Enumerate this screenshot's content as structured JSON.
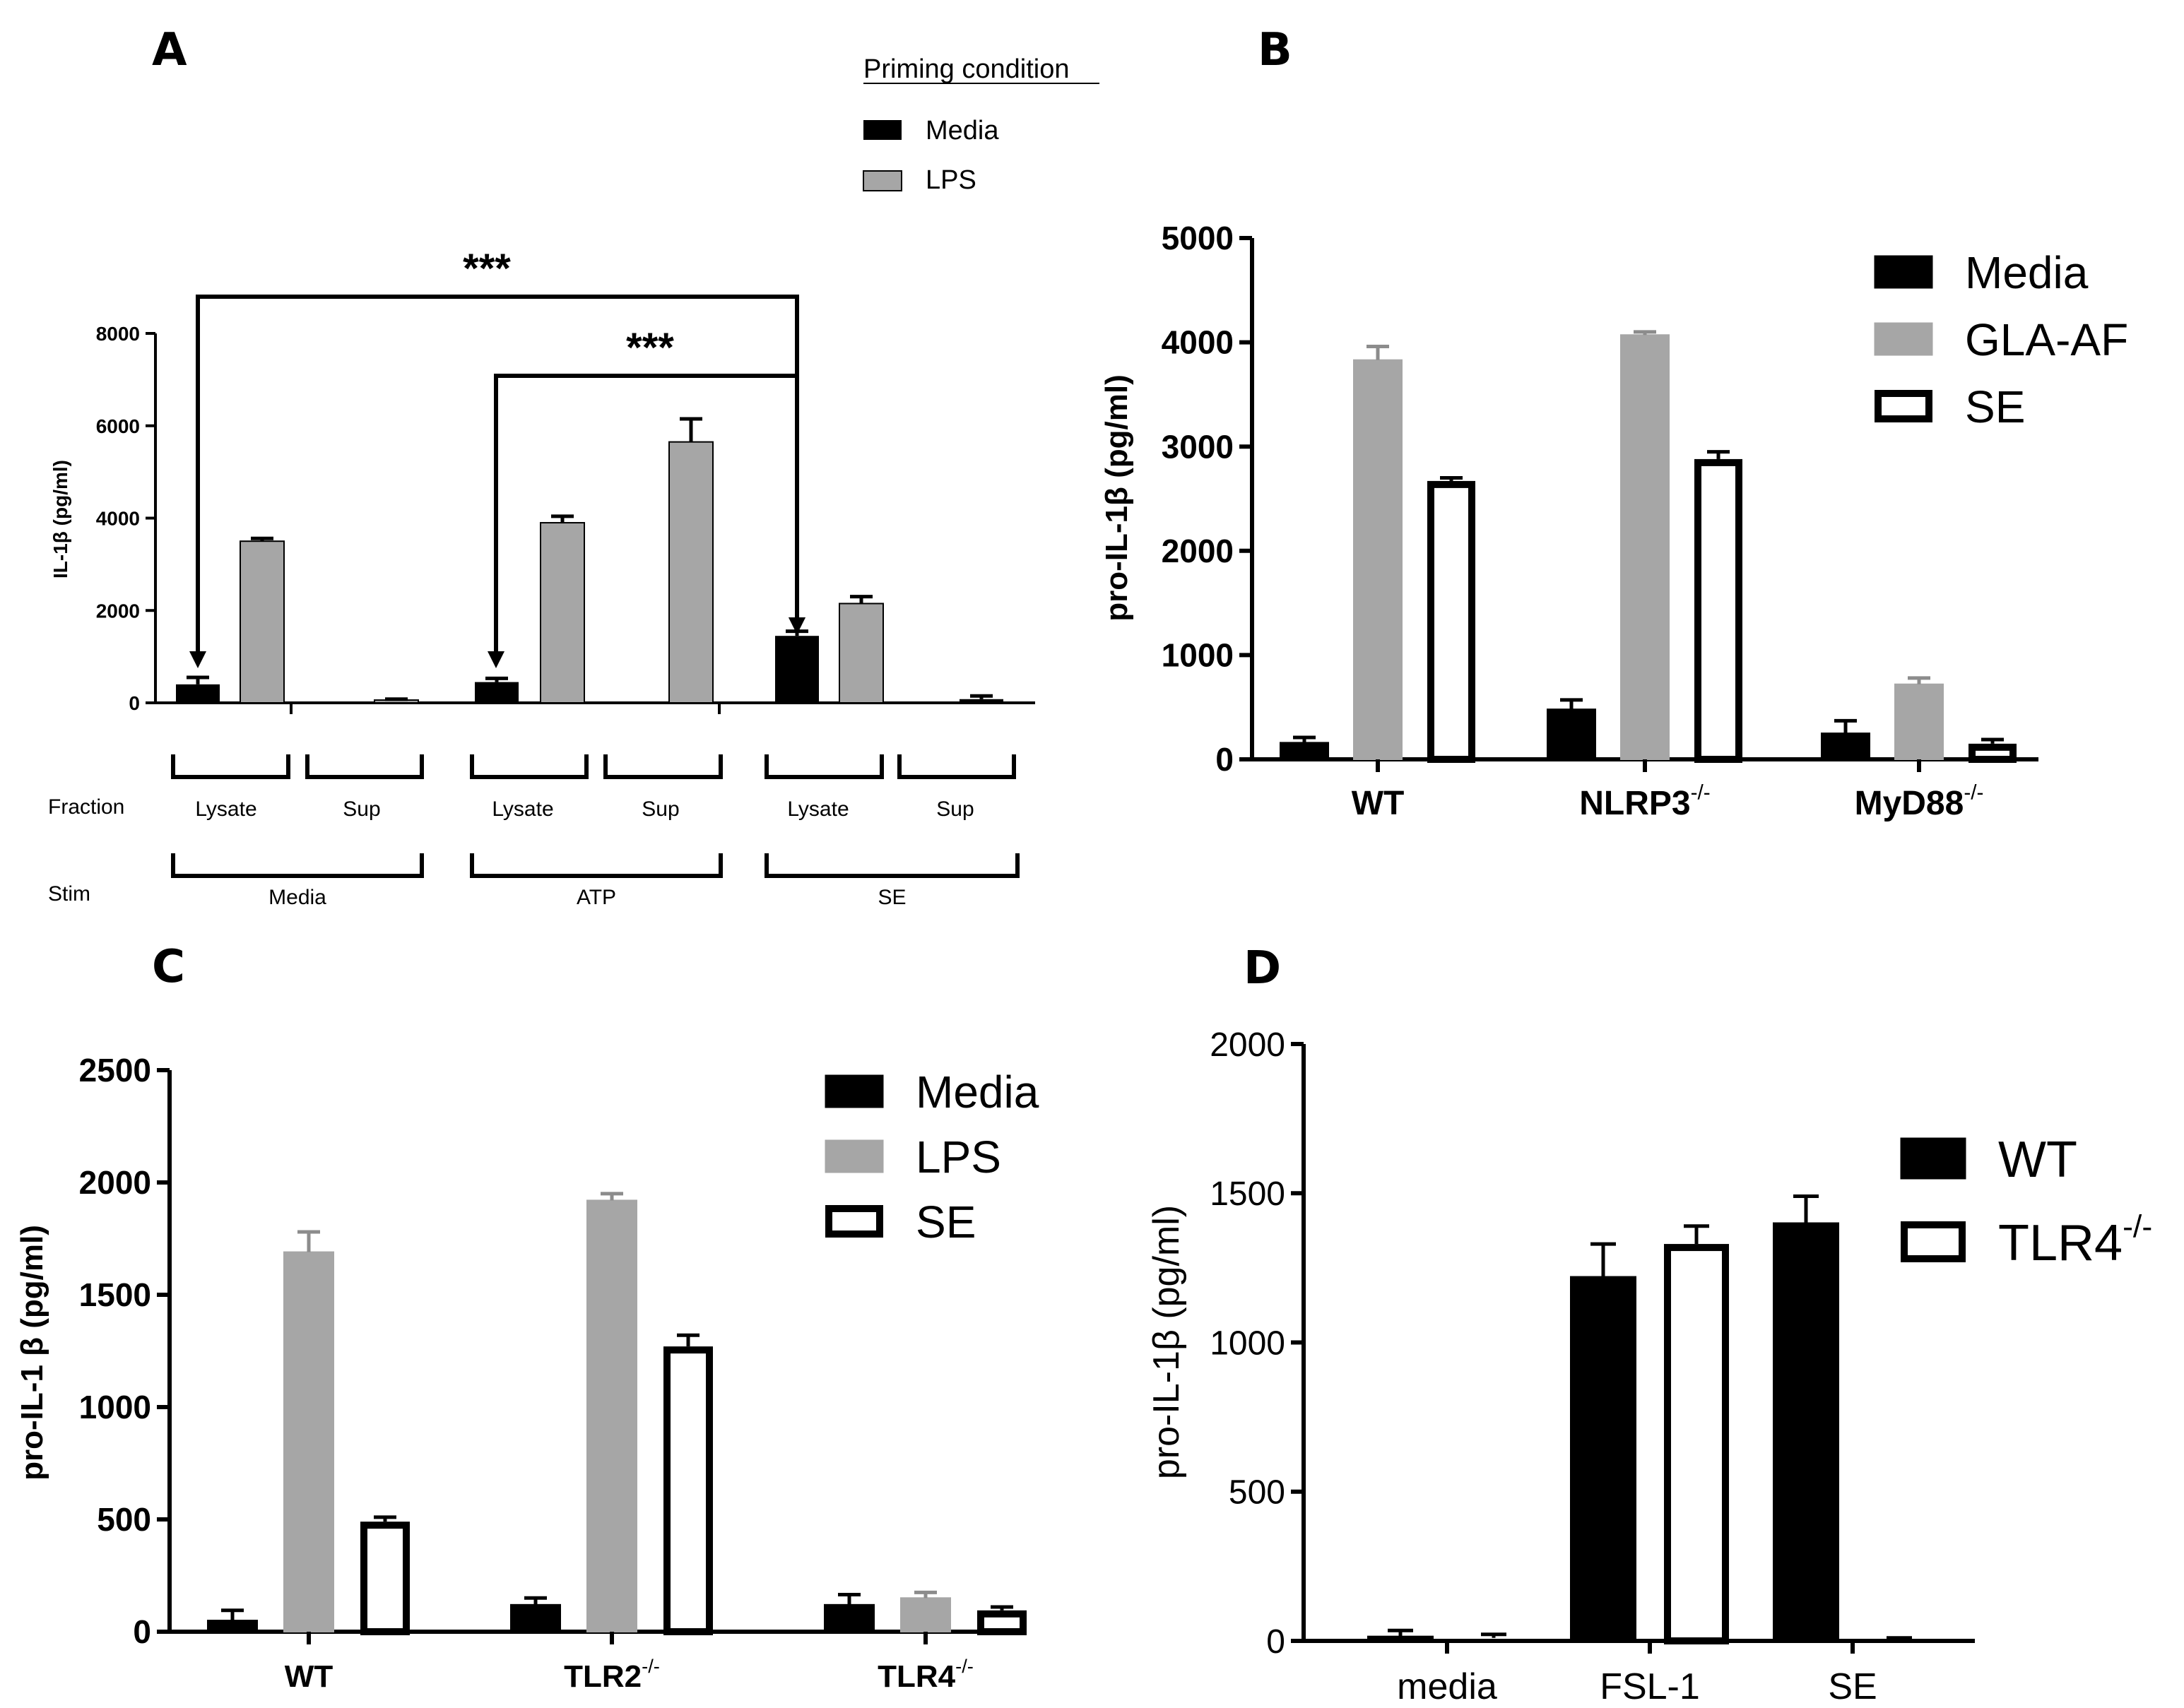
{
  "panel_labels": {
    "a": "A",
    "b": "B",
    "c": "C",
    "d": "D"
  },
  "colors": {
    "media": "#000000",
    "grey": "#a6a6a6",
    "open": "#ffffff",
    "stroke": "#000000"
  },
  "chart_data": [
    {
      "panel": "A",
      "type": "bar",
      "title": "",
      "ylabel": "IL-1β (pg/ml)",
      "ylim": [
        0,
        8000
      ],
      "yticks": [
        0,
        2000,
        4000,
        6000,
        8000
      ],
      "legend_title": "Priming condition",
      "legend_position": "top-center",
      "series": [
        {
          "name": "Media",
          "fill": "#000000",
          "values": [
            400,
            0,
            450,
            0,
            1450,
            80
          ],
          "errors": [
            150,
            0,
            80,
            0,
            100,
            70
          ]
        },
        {
          "name": "LPS",
          "fill": "#a6a6a6",
          "values": [
            3500,
            60,
            3900,
            5650,
            2150,
            0
          ],
          "errors": [
            60,
            20,
            140,
            500,
            150,
            0
          ]
        }
      ],
      "fraction_label": "Fraction",
      "stim_label": "Stim",
      "fractions": [
        "Lysate",
        "Sup",
        "Lysate",
        "Sup",
        "Lysate",
        "Sup"
      ],
      "stims": [
        "Media",
        "ATP",
        "SE"
      ],
      "significance": [
        {
          "from": "Media Lysate",
          "to": "SE Lysate",
          "label": "***"
        },
        {
          "from": "ATP Lysate",
          "to": "SE Lysate",
          "label": "***"
        }
      ]
    },
    {
      "panel": "B",
      "type": "bar",
      "title": "",
      "ylabel": "pro-IL-1β (pg/ml)",
      "ylim": [
        0,
        5000
      ],
      "yticks": [
        0,
        1000,
        2000,
        3000,
        4000,
        5000
      ],
      "legend_position": "top-right",
      "categories": [
        {
          "name": "WT",
          "sup": ""
        },
        {
          "name": "NLRP3",
          "sup": "-/-"
        },
        {
          "name": "MyD88",
          "sup": "-/-"
        }
      ],
      "series": [
        {
          "name": "Media",
          "fill": "#000000",
          "values": [
            160,
            480,
            250
          ],
          "errors": [
            50,
            90,
            120
          ]
        },
        {
          "name": "GLA-AF",
          "fill": "#a6a6a6",
          "values": [
            3830,
            4070,
            720
          ],
          "errors": [
            130,
            30,
            60
          ]
        },
        {
          "name": "SE",
          "fill": "#ffffff",
          "values": [
            2670,
            2880,
            150
          ],
          "errors": [
            30,
            70,
            40
          ]
        }
      ]
    },
    {
      "panel": "C",
      "type": "bar",
      "title": "",
      "ylabel": "pro-IL-1 β (pg/ml)",
      "ylim": [
        0,
        2500
      ],
      "yticks": [
        0,
        500,
        1000,
        1500,
        2000,
        2500
      ],
      "legend_position": "top-right",
      "categories": [
        {
          "name": "WT",
          "sup": ""
        },
        {
          "name": "TLR2",
          "sup": "-/-"
        },
        {
          "name": "TLR4",
          "sup": "-/-"
        }
      ],
      "series": [
        {
          "name": "Media",
          "fill": "#000000",
          "values": [
            50,
            120,
            120
          ],
          "errors": [
            45,
            30,
            45
          ]
        },
        {
          "name": "LPS",
          "fill": "#a6a6a6",
          "values": [
            1690,
            1920,
            150
          ],
          "errors": [
            90,
            30,
            25
          ]
        },
        {
          "name": "SE",
          "fill": "#ffffff",
          "values": [
            490,
            1270,
            95
          ],
          "errors": [
            20,
            50,
            15
          ]
        }
      ]
    },
    {
      "panel": "D",
      "type": "bar",
      "title": "",
      "ylabel": "pro-IL-1β (pg/ml)",
      "ylim": [
        0,
        2000
      ],
      "yticks": [
        0,
        500,
        1000,
        1500,
        2000
      ],
      "legend_position": "top-right",
      "categories": [
        {
          "name": "media",
          "sup": ""
        },
        {
          "name": "FSL-1",
          "sup": ""
        },
        {
          "name": "SE",
          "sup": ""
        }
      ],
      "series": [
        {
          "name": "WT",
          "fill": "#000000",
          "values": [
            15,
            1220,
            1400
          ],
          "errors": [
            20,
            110,
            90
          ]
        },
        {
          "name": "TLR4",
          "sup": "-/-",
          "fill": "#ffffff",
          "values": [
            10,
            1330,
            5
          ],
          "errors": [
            12,
            60,
            5
          ]
        }
      ]
    }
  ]
}
